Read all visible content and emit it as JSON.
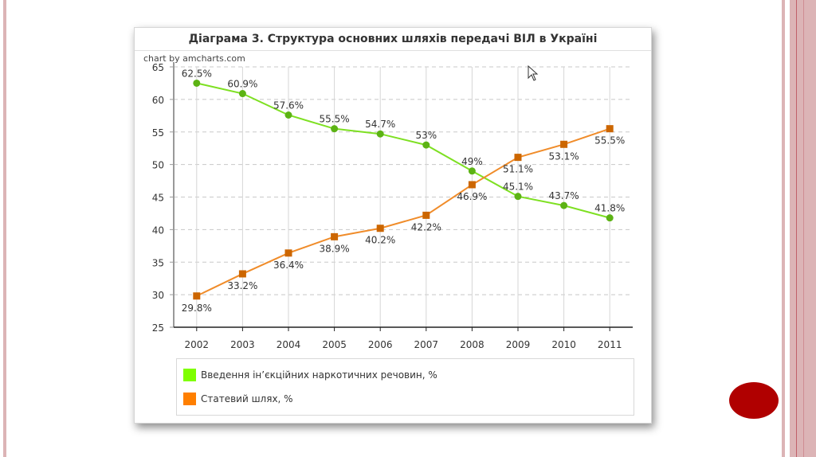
{
  "slide": {
    "decor_color": "#b00000",
    "stripe_color": "#dcb4b6"
  },
  "chart_data": {
    "type": "line",
    "title": "Діаграма 3. Структура основних шляхів передачі ВІЛ в Україні",
    "credit": "chart by amcharts.com",
    "xlabel": "",
    "ylabel": "",
    "categories": [
      "2002",
      "2003",
      "2004",
      "2005",
      "2006",
      "2007",
      "2008",
      "2009",
      "2010",
      "2011"
    ],
    "ylim": [
      25,
      65
    ],
    "yticks": [
      25,
      30,
      35,
      40,
      45,
      50,
      55,
      60,
      65
    ],
    "grid": true,
    "legend_position": "bottom",
    "series": [
      {
        "name": "Введення ін’єкційних наркотичних речовин, %",
        "color": "#7fff00",
        "line_color": "#7ee022",
        "marker_color": "#5cb314",
        "marker": "circle",
        "label_position": "above",
        "values": [
          62.5,
          60.9,
          57.6,
          55.5,
          54.7,
          53,
          49,
          45.1,
          43.7,
          41.8
        ],
        "labels": [
          "62.5%",
          "60.9%",
          "57.6%",
          "55.5%",
          "54.7%",
          "53%",
          "49%",
          "45.1%",
          "43.7%",
          "41.8%"
        ]
      },
      {
        "name": "Статевий шлях, %",
        "color": "#ff7f00",
        "line_color": "#f08c2a",
        "marker_color": "#cc6600",
        "marker": "square",
        "label_position": "below",
        "values": [
          29.8,
          33.2,
          36.4,
          38.9,
          40.2,
          42.2,
          46.9,
          51.1,
          53.1,
          55.5
        ],
        "labels": [
          "29.8%",
          "33.2%",
          "36.4%",
          "38.9%",
          "40.2%",
          "42.2%",
          "46.9%",
          "51.1%",
          "53.1%",
          "55.5%"
        ]
      }
    ]
  }
}
